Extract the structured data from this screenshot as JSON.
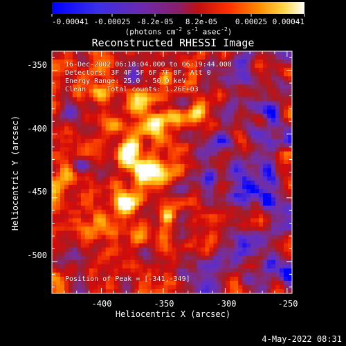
{
  "colorbar": {
    "tick_labels": [
      "-0.00041",
      "-0.00025",
      "-8.2e-05",
      "8.2e-05",
      "0.00025",
      "0.00041"
    ],
    "units_prefix": "(photons cm",
    "units_exp1": "-2",
    "units_mid": " s",
    "units_exp2": "-1",
    "units_mid2": " asec",
    "units_exp3": "-2",
    "units_suffix": ")"
  },
  "title": "Reconstructed RHESSI Image",
  "info": {
    "line1": "16-Dec-2002 06:18:04.000 to 06:19:44.000",
    "line2": "Detectors: 3F 4F 5F 6F 7F 8F, Att 0",
    "line3": "Energy Range: 25.0 - 50.0 keV",
    "line4": "Clean     Total counts: 1.26E+03"
  },
  "peak": "Position of Peak = [-341,-349]",
  "timestamp": "4-May-2022 08:31",
  "chart_data": {
    "type": "heatmap",
    "title": "Reconstructed RHESSI Image",
    "xlabel": "Heliocentric X (arcsec)",
    "ylabel": "Heliocentric Y (arcsec)",
    "xlim": [
      -440,
      -246
    ],
    "ylim": [
      -525,
      -335
    ],
    "x_ticks": [
      -400,
      -350,
      -300,
      -250
    ],
    "x_tick_labels": [
      "-400",
      "-350",
      "-300",
      "-250"
    ],
    "y_ticks": [
      -350,
      -400,
      -450,
      -500
    ],
    "y_tick_labels": [
      "-350",
      "-400",
      "-450",
      "-500"
    ],
    "colorscale": [
      "#0000ff",
      "#5a2ed0",
      "#7a2e95",
      "#a01e2a",
      "#d40b0b",
      "#ff4a00",
      "#ff9c00",
      "#ffe23a",
      "#ffffff"
    ],
    "color_range": [
      -0.00041,
      0.00041
    ],
    "peak_position": [
      -341,
      -349
    ],
    "grid": false
  }
}
